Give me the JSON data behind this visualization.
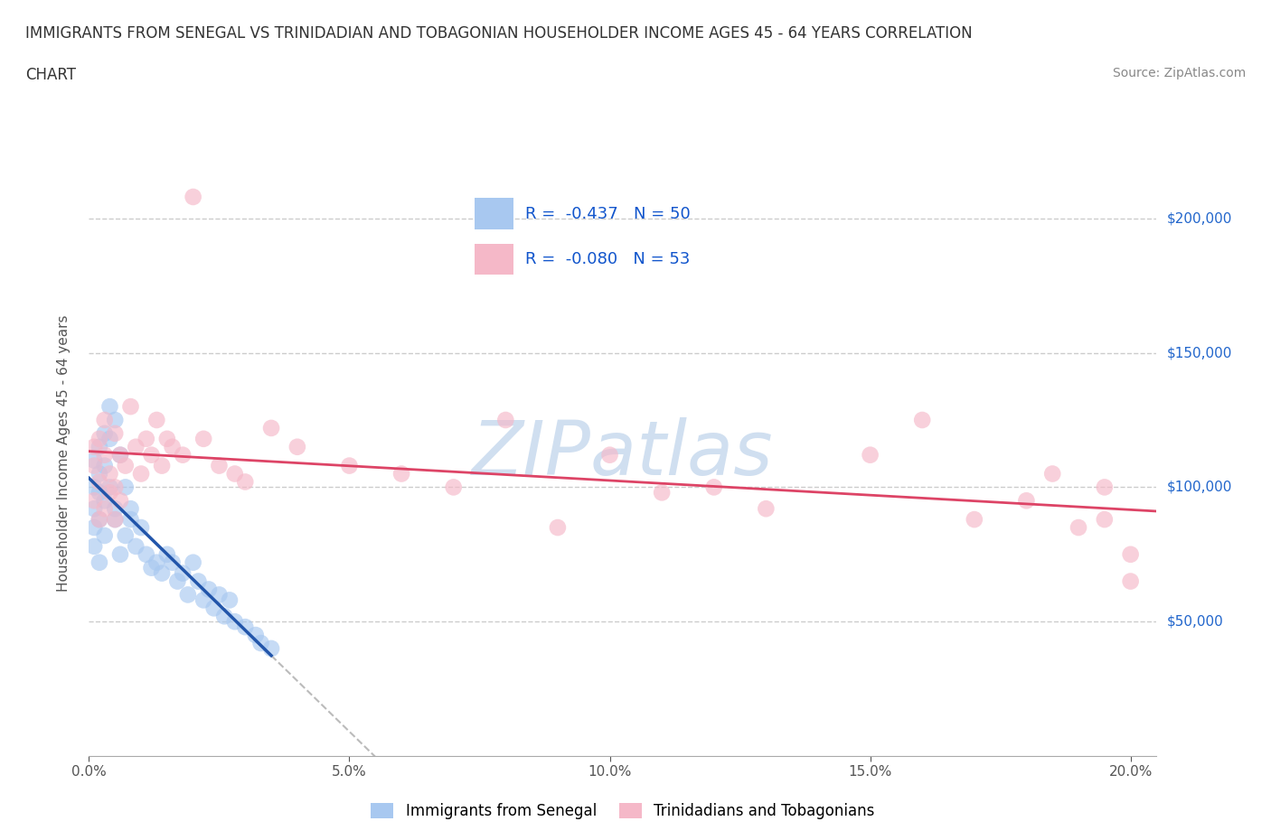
{
  "title_line1": "IMMIGRANTS FROM SENEGAL VS TRINIDADIAN AND TOBAGONIAN HOUSEHOLDER INCOME AGES 45 - 64 YEARS CORRELATION",
  "title_line2": "CHART",
  "source": "Source: ZipAtlas.com",
  "ylabel": "Householder Income Ages 45 - 64 years",
  "xlim": [
    0.0,
    0.205
  ],
  "ylim": [
    0,
    225000
  ],
  "xticks": [
    0.0,
    0.05,
    0.1,
    0.15,
    0.2
  ],
  "xticklabels": [
    "0.0%",
    "5.0%",
    "10.0%",
    "15.0%",
    "20.0%"
  ],
  "yticks": [
    50000,
    100000,
    150000,
    200000
  ],
  "yticklabels": [
    "$50,000",
    "$100,000",
    "$150,000",
    "$200,000"
  ],
  "senegal_color": "#A8C8F0",
  "trinidadian_color": "#F5B8C8",
  "senegal_R": -0.437,
  "senegal_N": 50,
  "trinidadian_R": -0.08,
  "trinidadian_N": 53,
  "regression_senegal_color": "#2255AA",
  "regression_trinidadian_color": "#DD4466",
  "regression_dashed_color": "#BBBBBB",
  "watermark": "ZIPatlas",
  "watermark_color": "#D0DFF0",
  "legend_R_color": "#1155CC",
  "background_color": "#FFFFFF",
  "grid_color": "#CCCCCC",
  "senegal_x": [
    0.001,
    0.001,
    0.001,
    0.001,
    0.001,
    0.002,
    0.002,
    0.002,
    0.002,
    0.002,
    0.003,
    0.003,
    0.003,
    0.003,
    0.004,
    0.004,
    0.004,
    0.005,
    0.005,
    0.005,
    0.006,
    0.006,
    0.007,
    0.007,
    0.008,
    0.008,
    0.009,
    0.01,
    0.011,
    0.012,
    0.013,
    0.014,
    0.015,
    0.016,
    0.017,
    0.018,
    0.019,
    0.02,
    0.021,
    0.022,
    0.023,
    0.024,
    0.025,
    0.026,
    0.027,
    0.028,
    0.03,
    0.032,
    0.033,
    0.035
  ],
  "senegal_y": [
    100000,
    92000,
    85000,
    110000,
    78000,
    105000,
    98000,
    88000,
    115000,
    72000,
    120000,
    95000,
    108000,
    82000,
    130000,
    100000,
    118000,
    125000,
    92000,
    88000,
    112000,
    75000,
    100000,
    82000,
    92000,
    88000,
    78000,
    85000,
    75000,
    70000,
    72000,
    68000,
    75000,
    72000,
    65000,
    68000,
    60000,
    72000,
    65000,
    58000,
    62000,
    55000,
    60000,
    52000,
    58000,
    50000,
    48000,
    45000,
    42000,
    40000
  ],
  "trinidadian_x": [
    0.001,
    0.001,
    0.001,
    0.002,
    0.002,
    0.002,
    0.003,
    0.003,
    0.003,
    0.004,
    0.004,
    0.005,
    0.005,
    0.005,
    0.006,
    0.006,
    0.007,
    0.008,
    0.009,
    0.01,
    0.011,
    0.012,
    0.013,
    0.014,
    0.015,
    0.016,
    0.018,
    0.02,
    0.022,
    0.025,
    0.028,
    0.03,
    0.035,
    0.04,
    0.05,
    0.06,
    0.07,
    0.08,
    0.09,
    0.1,
    0.11,
    0.12,
    0.13,
    0.15,
    0.16,
    0.17,
    0.18,
    0.185,
    0.19,
    0.195,
    0.195,
    0.2,
    0.2
  ],
  "trinidadian_y": [
    95000,
    108000,
    115000,
    102000,
    118000,
    88000,
    112000,
    125000,
    92000,
    105000,
    98000,
    120000,
    88000,
    100000,
    112000,
    95000,
    108000,
    130000,
    115000,
    105000,
    118000,
    112000,
    125000,
    108000,
    118000,
    115000,
    112000,
    208000,
    118000,
    108000,
    105000,
    102000,
    122000,
    115000,
    108000,
    105000,
    100000,
    125000,
    85000,
    112000,
    98000,
    100000,
    92000,
    112000,
    125000,
    88000,
    95000,
    105000,
    85000,
    100000,
    88000,
    75000,
    65000
  ]
}
